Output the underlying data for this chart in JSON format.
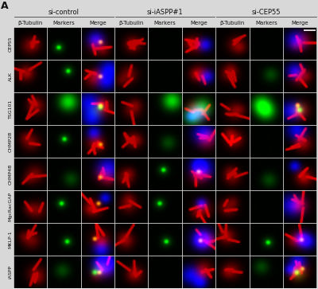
{
  "panel_label": "A",
  "col_groups": [
    "si-control",
    "si-iASPP#1",
    "si-CEP55"
  ],
  "sub_cols": [
    "β-Tubulin",
    "Markers",
    "Merge"
  ],
  "row_labels": [
    "CEP55",
    "ALK",
    "TSG101",
    "CHMP2B",
    "CHMP4B",
    "MgcRacGAP",
    "MKLP-1",
    "iASPP"
  ],
  "n_rows": 8,
  "n_col_groups": 3,
  "n_sub_cols": 3,
  "header_fontsize": 6.0,
  "sub_header_fontsize": 5.0,
  "row_label_fontsize": 4.5,
  "fig_bg": "#d8d8d8",
  "cell_bg": "#000000",
  "border_color": "#ffffff",
  "text_color": "#111111"
}
